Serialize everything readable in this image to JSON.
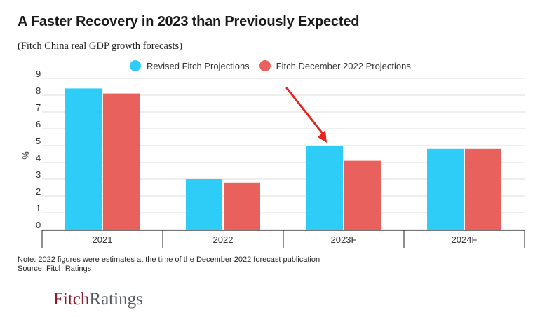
{
  "header": {
    "title": "A Faster Recovery in 2023 than Previously Expected",
    "subtitle": "(Fitch China real GDP growth forecasts)"
  },
  "legend": {
    "items": [
      {
        "label": "Revised Fitch Projections",
        "color": "#2ecdf7"
      },
      {
        "label": "Fitch December 2022 Projections",
        "color": "#e8615c"
      }
    ]
  },
  "chart_data": {
    "type": "bar",
    "title": "A Faster Recovery in 2023 than Previously Expected",
    "subtitle": "(Fitch China real GDP growth forecasts)",
    "xlabel": "",
    "ylabel": "%",
    "ylim": [
      0,
      9
    ],
    "yticks": [
      "0",
      "1",
      "2",
      "3",
      "4",
      "5",
      "6",
      "7",
      "8",
      "9"
    ],
    "grid": true,
    "legend_position": "top",
    "categories": [
      "2021",
      "2022",
      "2023F",
      "2024F"
    ],
    "series": [
      {
        "name": "Revised Fitch Projections",
        "color": "#2ecdf7",
        "values": [
          8.4,
          3.0,
          5.0,
          4.8
        ]
      },
      {
        "name": "Fitch December 2022 Projections",
        "color": "#e8615c",
        "values": [
          8.1,
          2.8,
          4.1,
          4.8
        ]
      }
    ],
    "annotation": {
      "type": "arrow",
      "color": "#e8251f",
      "target_category": "2023F",
      "target_series": "Revised Fitch Projections"
    }
  },
  "footer": {
    "note": "Note: 2022 figures were estimates at the time of the December 2022 forecast publication",
    "source": "Source: Fitch Ratings",
    "logo_part1": "Fitch",
    "logo_part2": "Ratings"
  }
}
